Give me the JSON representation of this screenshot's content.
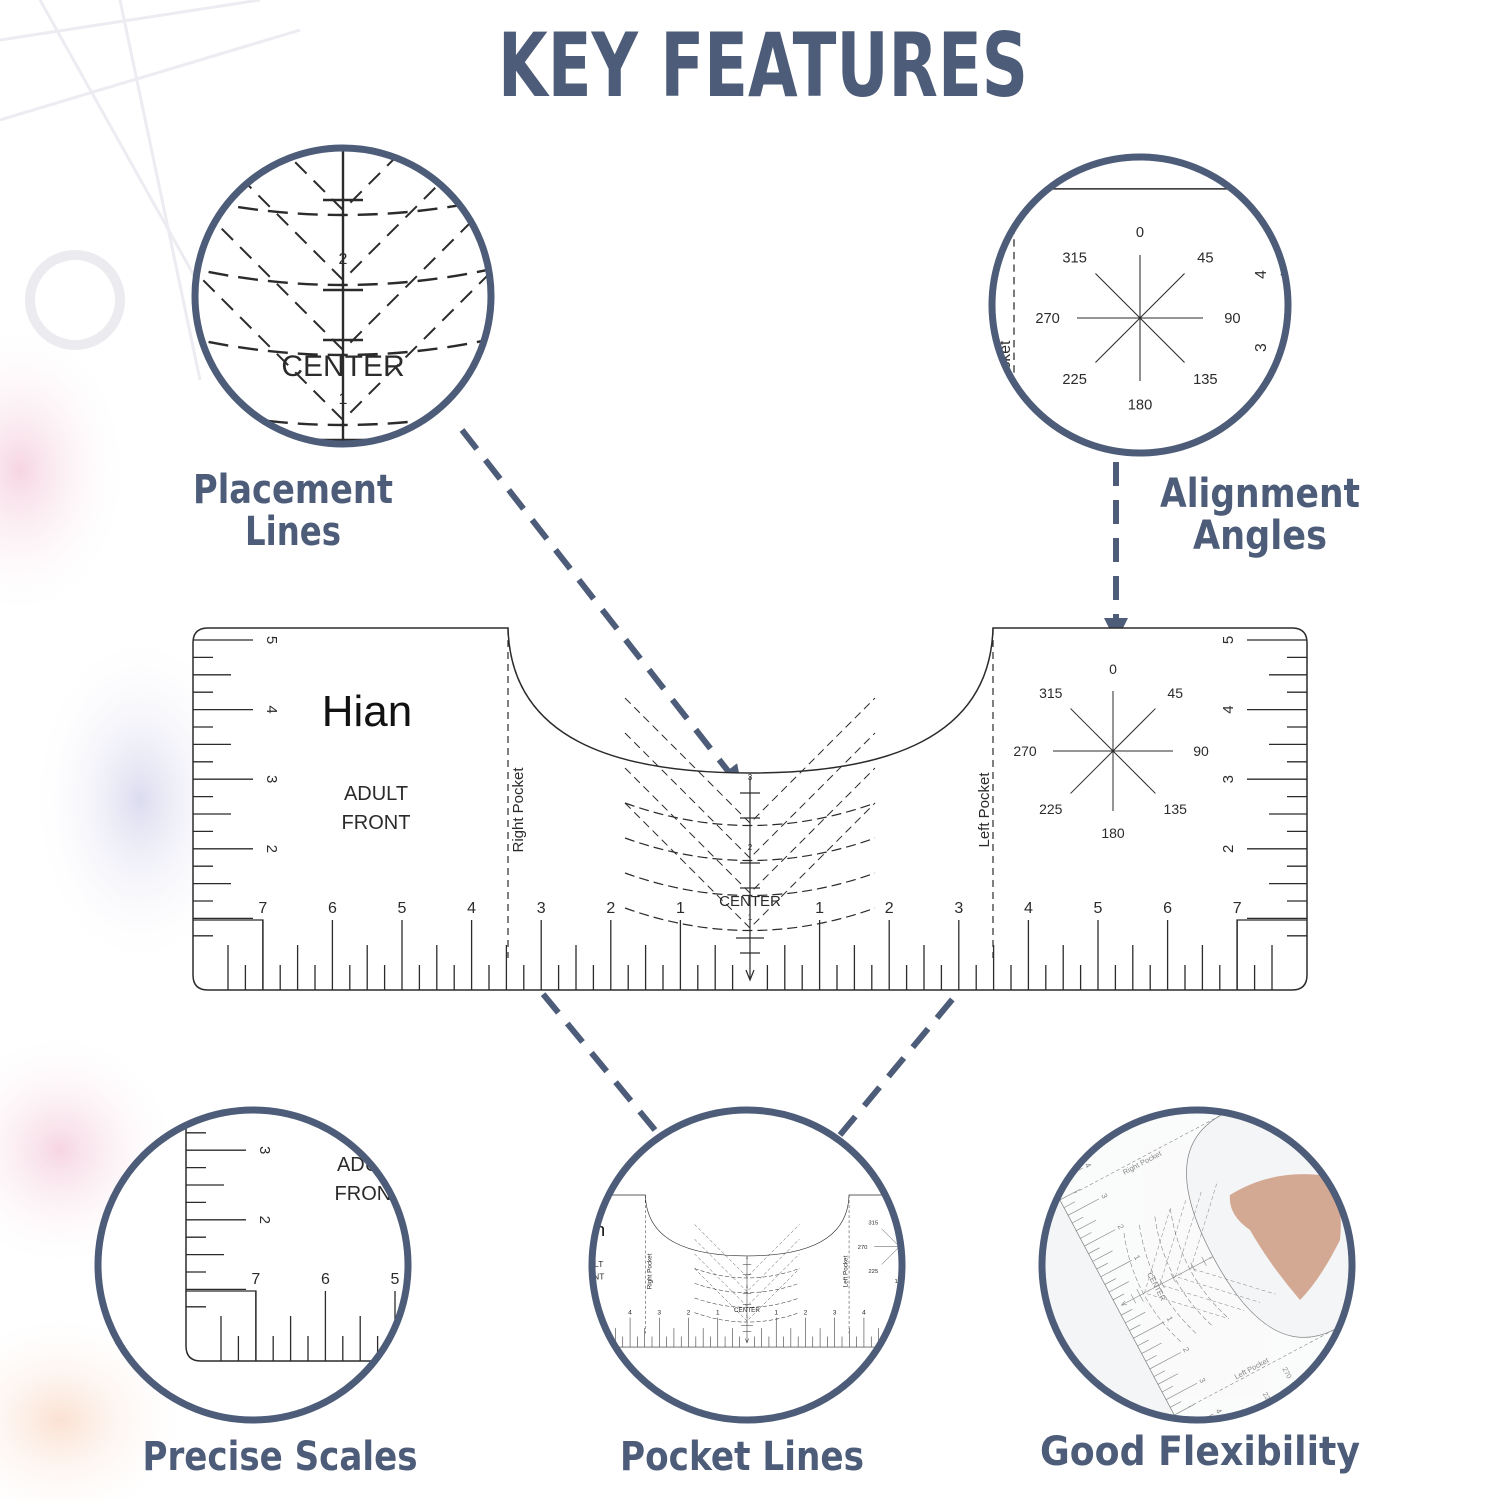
{
  "title": "KEY FEATURES",
  "features": [
    {
      "lines": [
        "Placement",
        "Lines"
      ]
    },
    {
      "lines": [
        "Alignment",
        "Angles"
      ]
    },
    {
      "lines": [
        "Precise Scales"
      ]
    },
    {
      "lines": [
        "Pocket Lines"
      ]
    },
    {
      "lines": [
        "Good Flexibility"
      ]
    }
  ],
  "ruler": {
    "brand": "Hian",
    "size": "ADULT",
    "side": "FRONT",
    "right_pocket": "Right Pocket",
    "left_pocket": "Left Pocket",
    "center": "CENTER",
    "scale_left": [
      7,
      6,
      5,
      4,
      3,
      2,
      1
    ],
    "scale_right": [
      1,
      2,
      3,
      4,
      5,
      6,
      7
    ],
    "side_scale": [
      5,
      4,
      3,
      2
    ],
    "center_marks": [
      3,
      2,
      1
    ],
    "angles": [
      0,
      45,
      90,
      135,
      180,
      225,
      270,
      315
    ]
  }
}
